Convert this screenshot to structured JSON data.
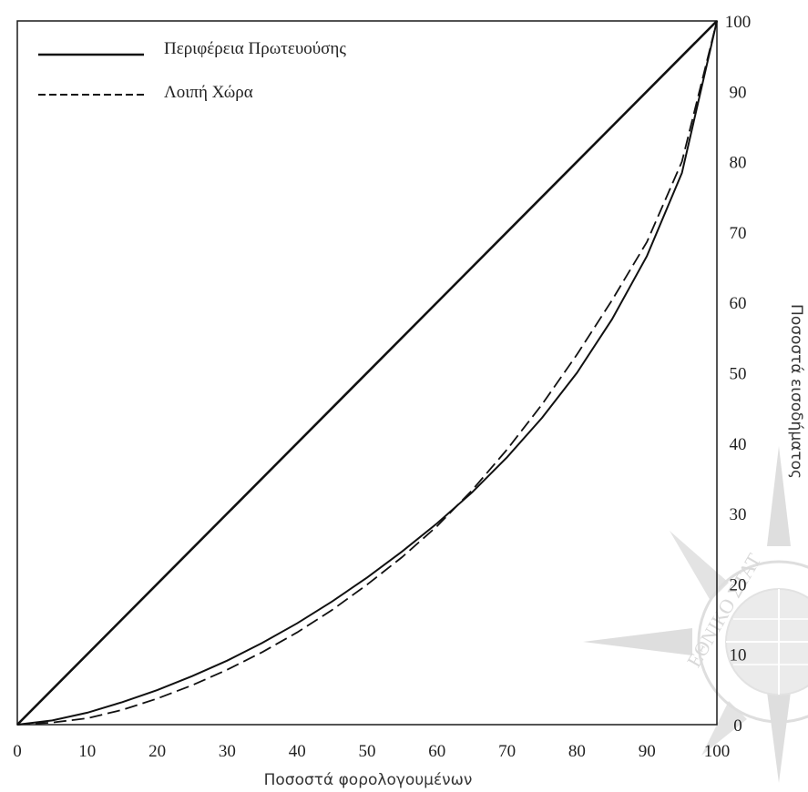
{
  "chart_data": {
    "type": "line",
    "title": "",
    "xlabel": "Ποσοστά φορολογουμένων",
    "ylabel": "Ποσοστά εισοδήματος",
    "xlim": [
      0,
      100
    ],
    "ylim": [
      0,
      100
    ],
    "x_ticks": [
      "0",
      "10",
      "20",
      "30",
      "40",
      "50",
      "60",
      "70",
      "80",
      "90",
      "100"
    ],
    "y_ticks": [
      "0",
      "10",
      "20",
      "30",
      "40",
      "50",
      "60",
      "70",
      "80",
      "90",
      "100"
    ],
    "grid": false,
    "legend_position": "top-left",
    "reference_line": {
      "x": [
        0,
        100
      ],
      "y": [
        0,
        100
      ]
    },
    "series": [
      {
        "name": "Περιφέρεια Πρωτευούσης",
        "style": "solid",
        "x": [
          0,
          5,
          10,
          15,
          20,
          25,
          30,
          35,
          40,
          45,
          50,
          55,
          60,
          65,
          70,
          75,
          80,
          85,
          90,
          95,
          100
        ],
        "y": [
          0,
          0.6,
          1.7,
          3.2,
          4.9,
          6.9,
          9.1,
          11.6,
          14.4,
          17.5,
          20.9,
          24.6,
          28.6,
          33.0,
          38.0,
          43.6,
          50.0,
          57.6,
          66.6,
          78.4,
          100
        ]
      },
      {
        "name": "Λοιπή Χώρα",
        "style": "dashed",
        "x": [
          0,
          5,
          10,
          15,
          20,
          25,
          30,
          35,
          40,
          45,
          50,
          55,
          60,
          65,
          70,
          75,
          80,
          85,
          90,
          95,
          100
        ],
        "y": [
          0,
          0.3,
          0.9,
          2.1,
          3.7,
          5.6,
          7.8,
          10.3,
          13.1,
          16.3,
          19.9,
          23.8,
          28.2,
          33.3,
          39.1,
          45.5,
          52.6,
          60.3,
          68.6,
          80.0,
          100
        ]
      }
    ],
    "colors": {
      "line": "#111111",
      "text": "#222222"
    }
  },
  "watermark": {
    "text": "ΕΘΝΙΚΟ ΣΤΑΤ"
  }
}
